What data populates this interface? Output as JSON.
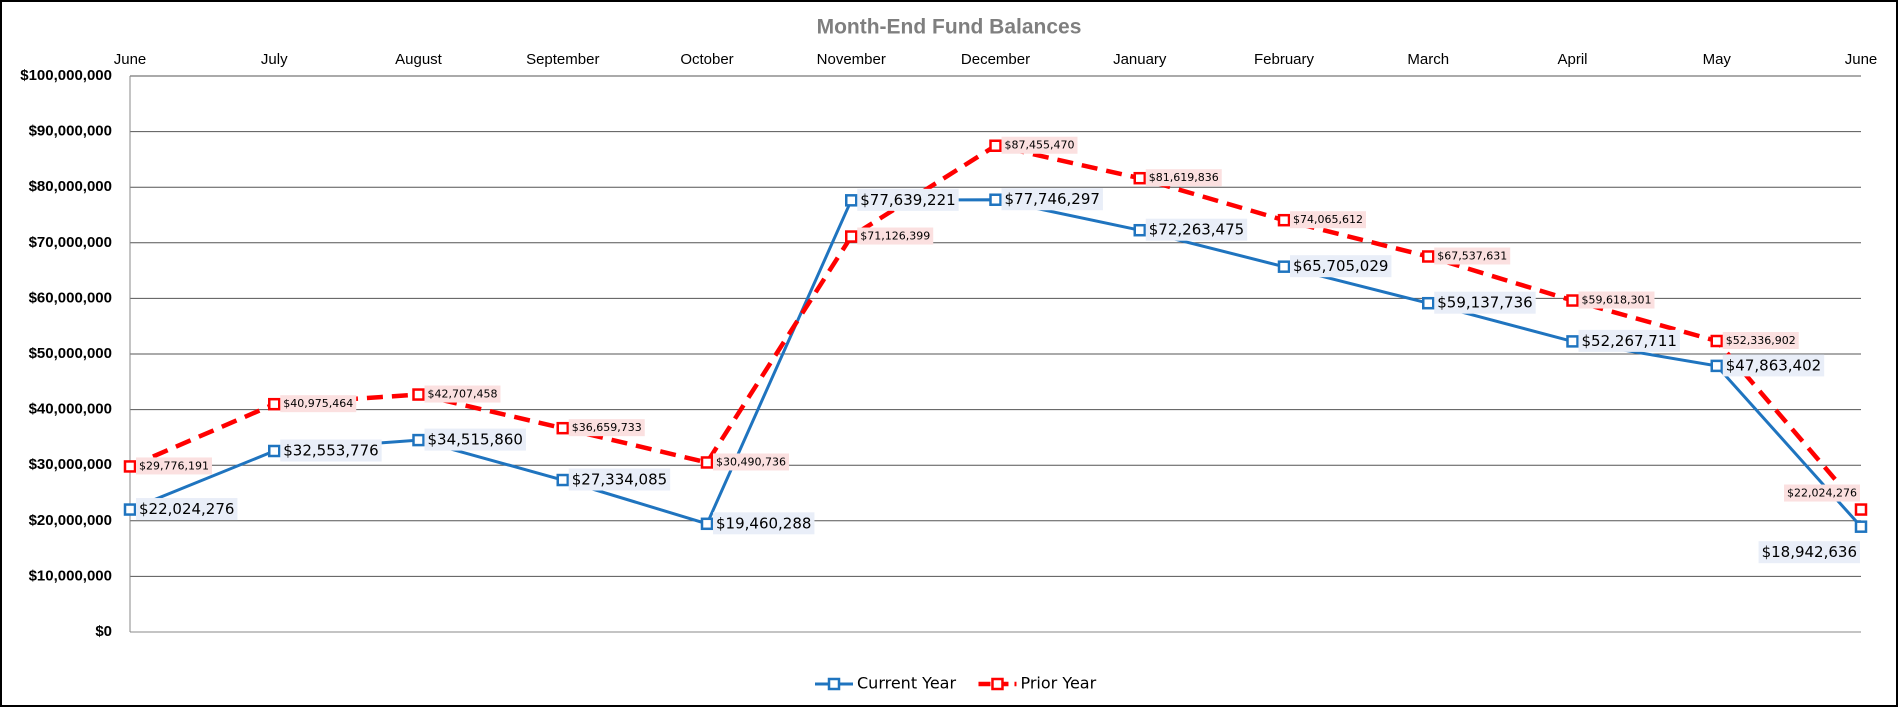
{
  "chart_data": {
    "type": "line",
    "title": "Month-End Fund Balances",
    "categories": [
      "June",
      "July",
      "August",
      "September",
      "October",
      "November",
      "December",
      "January",
      "February",
      "March",
      "April",
      "May",
      "June"
    ],
    "series": [
      {
        "name": "Current Year",
        "color": "#1f74bf",
        "values": [
          22024276,
          32553776,
          34515860,
          27334085,
          19460288,
          77639221,
          77746297,
          72263475,
          65705029,
          59137736,
          52267711,
          47863402,
          18942636
        ],
        "value_labels": [
          "$22,024,276",
          "$32,553,776",
          "$34,515,860",
          "$27,334,085",
          "$19,460,288",
          "$77,639,221",
          "$77,746,297",
          "$72,263,475",
          "$65,705,029",
          "$59,137,736",
          "$52,267,711",
          "$47,863,402",
          "$18,942,636"
        ]
      },
      {
        "name": "Prior Year",
        "color": "#ff0000",
        "values": [
          29776191,
          40975464,
          42707458,
          36659733,
          30490736,
          71126399,
          87455470,
          81619836,
          74065612,
          67537631,
          59618301,
          52336902,
          22024276
        ],
        "value_labels": [
          "$29,776,191",
          "$40,975,464",
          "$42,707,458",
          "$36,659,733",
          "$30,490,736",
          "$71,126,399",
          "$87,455,470",
          "$81,619,836",
          "$74,065,612",
          "$67,537,631",
          "$59,618,301",
          "$52,336,902",
          "$22,024,276"
        ]
      }
    ],
    "ylim": [
      0,
      100000000
    ],
    "yticks": [
      {
        "value": 0,
        "label": "$0"
      },
      {
        "value": 10000000,
        "label": "$10,000,000"
      },
      {
        "value": 20000000,
        "label": "$20,000,000"
      },
      {
        "value": 30000000,
        "label": "$30,000,000"
      },
      {
        "value": 40000000,
        "label": "$40,000,000"
      },
      {
        "value": 50000000,
        "label": "$50,000,000"
      },
      {
        "value": 60000000,
        "label": "$60,000,000"
      },
      {
        "value": 70000000,
        "label": "$70,000,000"
      },
      {
        "value": 80000000,
        "label": "$80,000,000"
      },
      {
        "value": 90000000,
        "label": "$90,000,000"
      },
      {
        "value": 100000000,
        "label": "$100,000,000"
      }
    ],
    "grid": true,
    "legend": "bottom"
  }
}
